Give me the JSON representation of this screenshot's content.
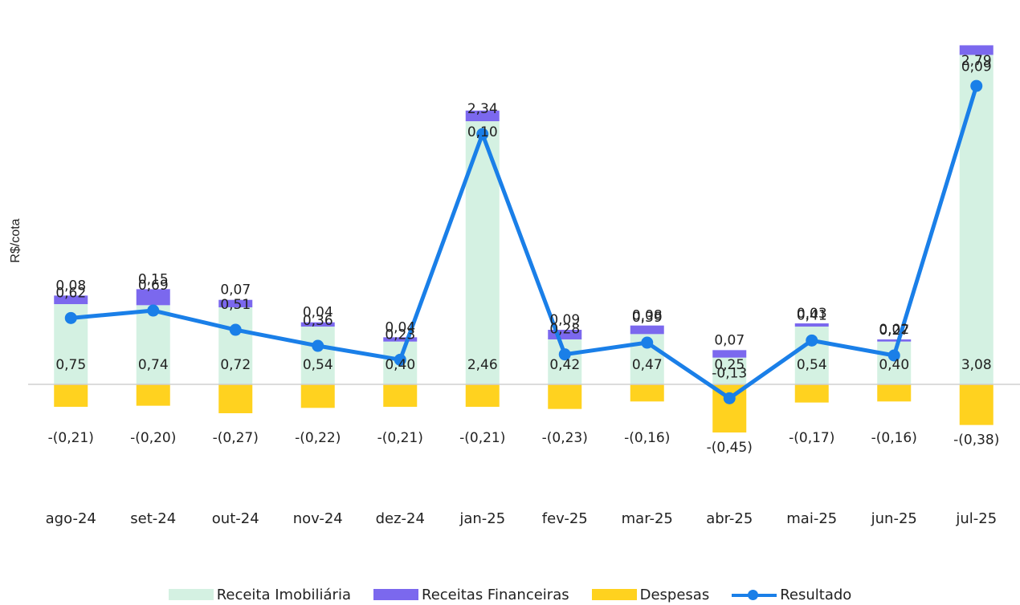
{
  "chart_data": {
    "type": "bar",
    "ylabel": "R$/cota",
    "categories": [
      "ago-24",
      "set-24",
      "out-24",
      "nov-24",
      "dez-24",
      "jan-25",
      "fev-25",
      "mar-25",
      "abr-25",
      "mai-25",
      "jun-25",
      "jul-25"
    ],
    "series": [
      {
        "name": "Receita Imobiliária",
        "type": "bar-stacked",
        "color": "#d4f1e2",
        "values": [
          0.75,
          0.74,
          0.72,
          0.54,
          0.4,
          2.46,
          0.42,
          0.47,
          0.25,
          0.54,
          0.4,
          3.08
        ],
        "labels": [
          "0,75",
          "0,74",
          "0,72",
          "0,54",
          "0,40",
          "2,46",
          "0,42",
          "0,47",
          "0,25",
          "0,54",
          "0,40",
          "3,08"
        ]
      },
      {
        "name": "Receitas Financeiras",
        "type": "bar-stacked",
        "color": "#7b68ee",
        "values": [
          0.08,
          0.15,
          0.07,
          0.04,
          0.04,
          0.1,
          0.09,
          0.08,
          0.07,
          0.03,
          0.02,
          0.09
        ],
        "labels": [
          "0,08",
          "0,15",
          "0,07",
          "0,04",
          "0,04",
          "0,10",
          "0,09",
          "0,08",
          "0,07",
          "0,03",
          "0,02",
          "0,09"
        ]
      },
      {
        "name": "Despesas",
        "type": "bar-negative",
        "color": "#ffd21f",
        "values": [
          -0.21,
          -0.2,
          -0.27,
          -0.22,
          -0.21,
          -0.21,
          -0.23,
          -0.16,
          -0.45,
          -0.17,
          -0.16,
          -0.38
        ],
        "labels": [
          "-(0,21)",
          "-(0,20)",
          "-(0,27)",
          "-(0,22)",
          "-(0,21)",
          "-(0,21)",
          "-(0,23)",
          "-(0,16)",
          "-(0,45)",
          "-(0,17)",
          "-(0,16)",
          "-(0,38)"
        ]
      },
      {
        "name": "Resultado",
        "type": "line",
        "color": "#1a7fe8",
        "values": [
          0.62,
          0.69,
          0.51,
          0.36,
          0.23,
          2.34,
          0.28,
          0.39,
          -0.13,
          0.41,
          0.27,
          2.79
        ],
        "labels": [
          "0,62",
          "0,69",
          "0,51",
          "0,36",
          "0,23",
          "2,34",
          "0,28",
          "0,39",
          "-0,13",
          "0,41",
          "0,27",
          "2,79"
        ]
      }
    ],
    "ylim": [
      -0.6,
      3.2
    ],
    "grid": false,
    "legend_position": "bottom"
  }
}
